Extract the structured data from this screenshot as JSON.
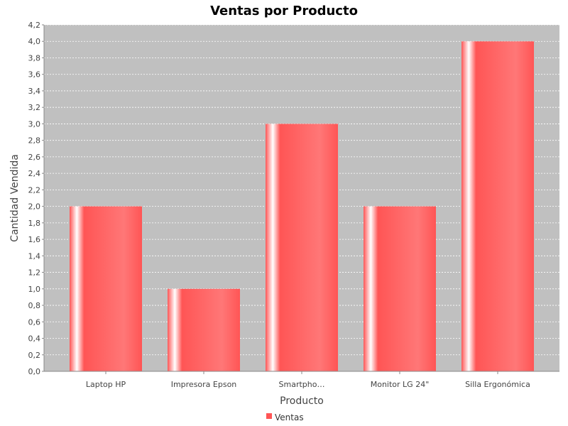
{
  "chart_data": {
    "type": "bar",
    "title": "Ventas por Producto",
    "xlabel": "Producto",
    "ylabel": "Cantidad Vendida",
    "categories": [
      "Laptop HP",
      "Impresora Epson",
      "Smartpho…",
      "Monitor LG 24\"",
      "Silla Ergonómica"
    ],
    "series": [
      {
        "name": "Ventas",
        "values": [
          2,
          1,
          3,
          2,
          4
        ],
        "color": "#ff5555"
      }
    ],
    "ylim": [
      0,
      4.2
    ],
    "yticks": [
      "0,0",
      "0,2",
      "0,4",
      "0,6",
      "0,8",
      "1,0",
      "1,2",
      "1,4",
      "1,6",
      "1,8",
      "2,0",
      "2,2",
      "2,4",
      "2,6",
      "2,8",
      "3,0",
      "3,2",
      "3,4",
      "3,6",
      "3,8",
      "4,0",
      "4,2"
    ],
    "grid": true,
    "legend": "bottom-center",
    "plot_background": "#c0c0c0"
  }
}
